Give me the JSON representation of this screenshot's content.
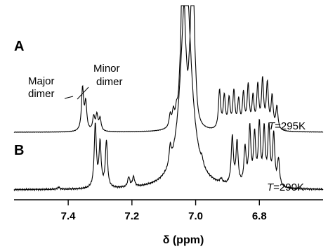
{
  "chart_data": {
    "type": "line",
    "xlabel": "δ (ppm)",
    "x_axis": {
      "range": [
        7.57,
        6.6
      ],
      "reversed": true,
      "ticks": [
        7.4,
        7.2,
        7.0,
        6.8
      ],
      "tick_labels": [
        "7.4",
        "7.2",
        "7.0",
        "6.8"
      ]
    },
    "grid": false,
    "panels": [
      {
        "label": "A",
        "temperature_prefix": "T",
        "temperature_value": "=295K",
        "annotations": [
          {
            "text_lines": [
              "Major",
              "dimer"
            ],
            "x": 7.355
          },
          {
            "text_lines": [
              "Minor",
              "dimer"
            ],
            "x": 7.34
          }
        ],
        "peaks": [
          {
            "x": 7.355,
            "h": 0.55,
            "w": 0.004
          },
          {
            "x": 7.345,
            "h": 0.35,
            "w": 0.004
          },
          {
            "x": 7.32,
            "h": 0.18,
            "w": 0.004
          },
          {
            "x": 7.31,
            "h": 0.2,
            "w": 0.004
          },
          {
            "x": 7.3,
            "h": 0.16,
            "w": 0.004
          },
          {
            "x": 7.08,
            "h": 0.16,
            "w": 0.004
          },
          {
            "x": 7.07,
            "h": 0.18,
            "w": 0.004
          },
          {
            "x": 7.06,
            "h": 0.15,
            "w": 0.004
          },
          {
            "x": 7.05,
            "h": 0.17,
            "w": 0.004
          },
          {
            "x": 7.04,
            "h": 3.0,
            "w": 0.005
          },
          {
            "x": 7.03,
            "h": 0.25,
            "w": 0.004
          },
          {
            "x": 7.02,
            "h": 0.22,
            "w": 0.004
          },
          {
            "x": 7.01,
            "h": 3.0,
            "w": 0.005
          },
          {
            "x": 7.0,
            "h": 0.2,
            "w": 0.004
          },
          {
            "x": 6.925,
            "h": 0.5,
            "w": 0.004
          },
          {
            "x": 6.91,
            "h": 0.42,
            "w": 0.004
          },
          {
            "x": 6.895,
            "h": 0.38,
            "w": 0.004
          },
          {
            "x": 6.88,
            "h": 0.48,
            "w": 0.004
          },
          {
            "x": 6.865,
            "h": 0.36,
            "w": 0.004
          },
          {
            "x": 6.85,
            "h": 0.45,
            "w": 0.004
          },
          {
            "x": 6.835,
            "h": 0.55,
            "w": 0.004
          },
          {
            "x": 6.82,
            "h": 0.4,
            "w": 0.004
          },
          {
            "x": 6.805,
            "h": 0.55,
            "w": 0.004
          },
          {
            "x": 6.79,
            "h": 0.62,
            "w": 0.004
          },
          {
            "x": 6.775,
            "h": 0.58,
            "w": 0.004
          },
          {
            "x": 6.76,
            "h": 0.42,
            "w": 0.004
          },
          {
            "x": 6.745,
            "h": 0.3,
            "w": 0.004
          }
        ]
      },
      {
        "label": "B",
        "temperature_prefix": "T",
        "temperature_value": "=290K",
        "peaks": [
          {
            "x": 7.43,
            "h": 0.03,
            "w": 0.004
          },
          {
            "x": 7.315,
            "h": 0.9,
            "w": 0.004
          },
          {
            "x": 7.3,
            "h": 0.62,
            "w": 0.004
          },
          {
            "x": 7.28,
            "h": 0.66,
            "w": 0.004
          },
          {
            "x": 7.21,
            "h": 0.14,
            "w": 0.004
          },
          {
            "x": 7.195,
            "h": 0.14,
            "w": 0.004
          },
          {
            "x": 7.08,
            "h": 0.25,
            "w": 0.004
          },
          {
            "x": 7.03,
            "h": 3.0,
            "w": 0.02
          },
          {
            "x": 6.98,
            "h": 0.08,
            "w": 0.004
          },
          {
            "x": 6.92,
            "h": 0.06,
            "w": 0.004
          },
          {
            "x": 6.885,
            "h": 0.68,
            "w": 0.004
          },
          {
            "x": 6.87,
            "h": 0.6,
            "w": 0.004
          },
          {
            "x": 6.845,
            "h": 0.52,
            "w": 0.004
          },
          {
            "x": 6.83,
            "h": 0.8,
            "w": 0.004
          },
          {
            "x": 6.815,
            "h": 0.7,
            "w": 0.004
          },
          {
            "x": 6.8,
            "h": 0.85,
            "w": 0.004
          },
          {
            "x": 6.785,
            "h": 0.78,
            "w": 0.004
          },
          {
            "x": 6.77,
            "h": 0.82,
            "w": 0.004
          },
          {
            "x": 6.755,
            "h": 0.72,
            "w": 0.004
          },
          {
            "x": 6.74,
            "h": 0.38,
            "w": 0.004
          }
        ]
      }
    ]
  }
}
